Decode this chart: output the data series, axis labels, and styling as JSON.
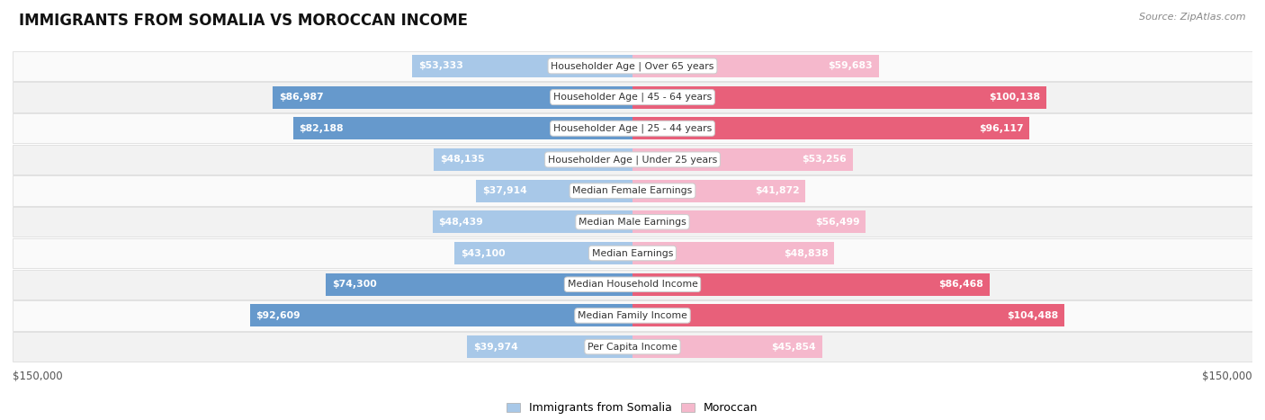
{
  "title": "IMMIGRANTS FROM SOMALIA VS MOROCCAN INCOME",
  "source": "Source: ZipAtlas.com",
  "categories": [
    "Per Capita Income",
    "Median Family Income",
    "Median Household Income",
    "Median Earnings",
    "Median Male Earnings",
    "Median Female Earnings",
    "Householder Age | Under 25 years",
    "Householder Age | 25 - 44 years",
    "Householder Age | 45 - 64 years",
    "Householder Age | Over 65 years"
  ],
  "somalia_values": [
    39974,
    92609,
    74300,
    43100,
    48439,
    37914,
    48135,
    82188,
    86987,
    53333
  ],
  "moroccan_values": [
    45854,
    104488,
    86468,
    48838,
    56499,
    41872,
    53256,
    96117,
    100138,
    59683
  ],
  "somalia_labels": [
    "$39,974",
    "$92,609",
    "$74,300",
    "$43,100",
    "$48,439",
    "$37,914",
    "$48,135",
    "$82,188",
    "$86,987",
    "$53,333"
  ],
  "moroccan_labels": [
    "$45,854",
    "$104,488",
    "$86,468",
    "$48,838",
    "$56,499",
    "$41,872",
    "$53,256",
    "$96,117",
    "$100,138",
    "$59,683"
  ],
  "somalia_color_light": "#a8c8e8",
  "somalia_color_dark": "#6699cc",
  "moroccan_color_light": "#f5b8cc",
  "moroccan_color_dark": "#e8607a",
  "max_value": 150000,
  "background_color": "#ffffff",
  "row_bg_even": "#f2f2f2",
  "row_bg_odd": "#fafafa",
  "row_border": "#dddddd",
  "legend_somalia": "Immigrants from Somalia",
  "legend_moroccan": "Moroccan",
  "label_outside_color": "#333333",
  "label_inside_color": "#ffffff",
  "center_label_color": "#333333",
  "bottom_label_color": "#555555",
  "title_color": "#111111",
  "source_color": "#888888"
}
